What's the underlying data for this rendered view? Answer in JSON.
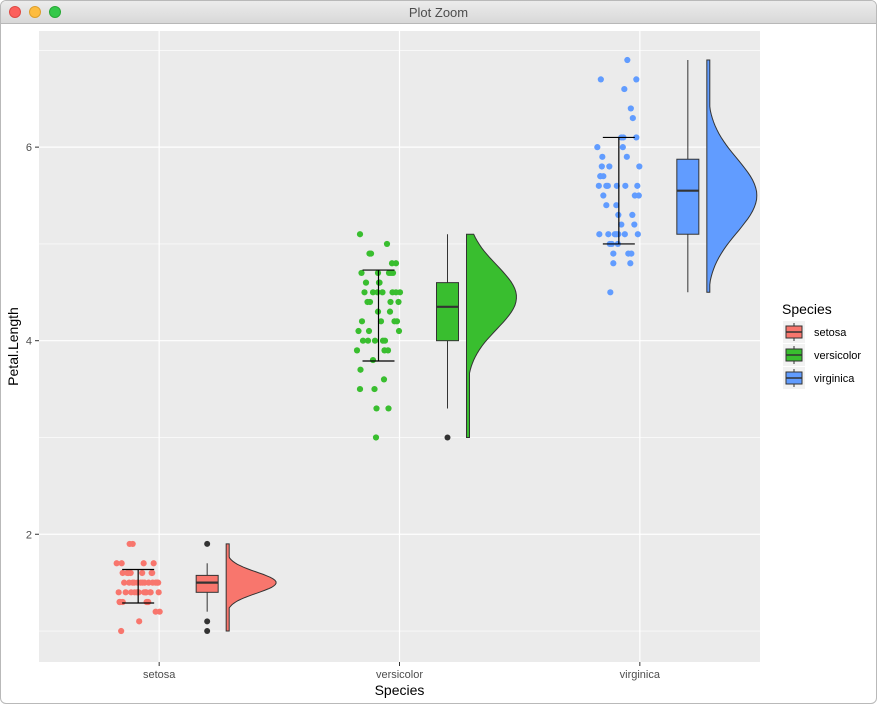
{
  "window": {
    "title": "Plot Zoom"
  },
  "colors": {
    "setosa": "#F8766D",
    "versicolor": "#39BE2F",
    "virginica": "#619CFF",
    "panel": "#EBEBEB",
    "grid": "#FFFFFF"
  },
  "chart_data": {
    "type": "raincloud",
    "xlabel": "Species",
    "ylabel": "Petal.Length",
    "categories": [
      "setosa",
      "versicolor",
      "virginica"
    ],
    "yticks": [
      2,
      4,
      6
    ],
    "ylim": [
      0.68,
      7.2
    ],
    "legend": {
      "title": "Species",
      "position": "right",
      "entries": [
        "setosa",
        "versicolor",
        "virginica"
      ]
    },
    "series": [
      {
        "name": "setosa",
        "points": [
          1.4,
          1.4,
          1.3,
          1.5,
          1.4,
          1.7,
          1.4,
          1.5,
          1.4,
          1.5,
          1.5,
          1.6,
          1.4,
          1.1,
          1.2,
          1.5,
          1.3,
          1.4,
          1.7,
          1.5,
          1.7,
          1.5,
          1.0,
          1.7,
          1.9,
          1.6,
          1.6,
          1.5,
          1.4,
          1.6,
          1.6,
          1.5,
          1.5,
          1.4,
          1.5,
          1.2,
          1.3,
          1.4,
          1.3,
          1.5,
          1.3,
          1.3,
          1.3,
          1.6,
          1.9,
          1.4,
          1.6,
          1.4,
          1.5,
          1.4
        ],
        "box": {
          "q1": 1.4,
          "median": 1.5,
          "q3": 1.575,
          "whisker_low": 1.2,
          "whisker_high": 1.7,
          "outliers": [
            1.0,
            1.1,
            1.9
          ]
        },
        "errorbar": {
          "mean": 1.462,
          "low": 1.29,
          "high": 1.636
        },
        "density": {
          "min": 1.0,
          "max": 1.9,
          "peak": 1.5,
          "spread": 0.11
        }
      },
      {
        "name": "versicolor",
        "points": [
          4.7,
          4.5,
          4.9,
          4.0,
          4.6,
          4.5,
          4.7,
          3.3,
          4.6,
          3.9,
          3.5,
          4.2,
          4.0,
          4.7,
          3.6,
          4.4,
          4.5,
          4.1,
          4.5,
          3.9,
          4.8,
          4.0,
          4.9,
          4.7,
          4.3,
          4.4,
          4.8,
          5.0,
          4.5,
          3.5,
          3.8,
          3.7,
          3.9,
          5.1,
          4.5,
          4.5,
          4.7,
          4.4,
          4.1,
          4.0,
          4.4,
          4.6,
          4.0,
          3.3,
          4.2,
          4.2,
          4.2,
          4.3,
          3.0,
          4.1
        ],
        "box": {
          "q1": 4.0,
          "median": 4.35,
          "q3": 4.6,
          "whisker_low": 3.3,
          "whisker_high": 5.1,
          "outliers": [
            3.0
          ]
        },
        "errorbar": {
          "mean": 4.26,
          "low": 3.79,
          "high": 4.73
        },
        "density": {
          "min": 3.0,
          "max": 5.1,
          "peak": 4.45,
          "spread": 0.33
        }
      },
      {
        "name": "virginica",
        "points": [
          6.0,
          5.1,
          5.9,
          5.6,
          5.8,
          6.6,
          4.5,
          6.3,
          5.8,
          6.1,
          5.1,
          5.3,
          5.5,
          5.0,
          5.1,
          5.3,
          5.5,
          6.7,
          6.9,
          5.0,
          5.7,
          4.9,
          6.7,
          4.9,
          5.7,
          6.0,
          4.8,
          4.9,
          5.6,
          5.8,
          6.1,
          6.4,
          5.6,
          5.1,
          5.6,
          6.1,
          5.6,
          5.5,
          4.8,
          5.4,
          5.6,
          5.1,
          5.1,
          5.9,
          5.7,
          5.2,
          5.0,
          5.2,
          5.4,
          5.1
        ],
        "box": {
          "q1": 5.1,
          "median": 5.55,
          "q3": 5.875,
          "whisker_low": 4.5,
          "whisker_high": 6.9,
          "outliers": []
        },
        "errorbar": {
          "mean": 5.552,
          "low": 5.0,
          "high": 6.1
        },
        "density": {
          "min": 4.5,
          "max": 6.9,
          "peak": 5.5,
          "spread": 0.38
        }
      }
    ]
  }
}
